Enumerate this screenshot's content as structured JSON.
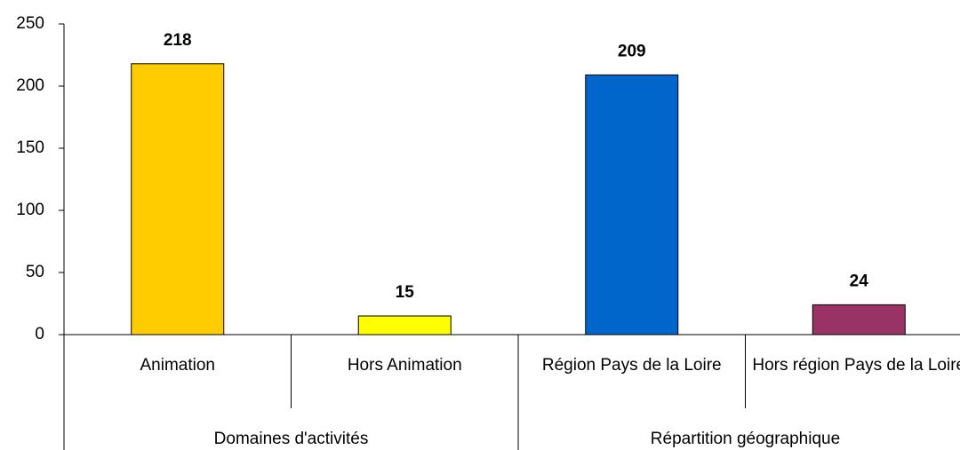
{
  "chart_data": {
    "type": "bar",
    "categories": [
      "Animation",
      "Hors Animation",
      "Région Pays de la Loire",
      "Hors région Pays de la Loire"
    ],
    "values": [
      218,
      15,
      209,
      24
    ],
    "colors": [
      "#FFCC00",
      "#FFFF00",
      "#0066CC",
      "#993366"
    ],
    "groups": [
      {
        "name": "Domaines d'activités",
        "categories": [
          "Animation",
          "Hors Animation"
        ]
      },
      {
        "name": "Répartition géographique",
        "categories": [
          "Région Pays de la Loire",
          "Hors région Pays de la Loire"
        ]
      }
    ],
    "ylim": [
      0,
      250
    ],
    "yticks": [
      0,
      50,
      100,
      150,
      200,
      250
    ],
    "grid": false
  }
}
